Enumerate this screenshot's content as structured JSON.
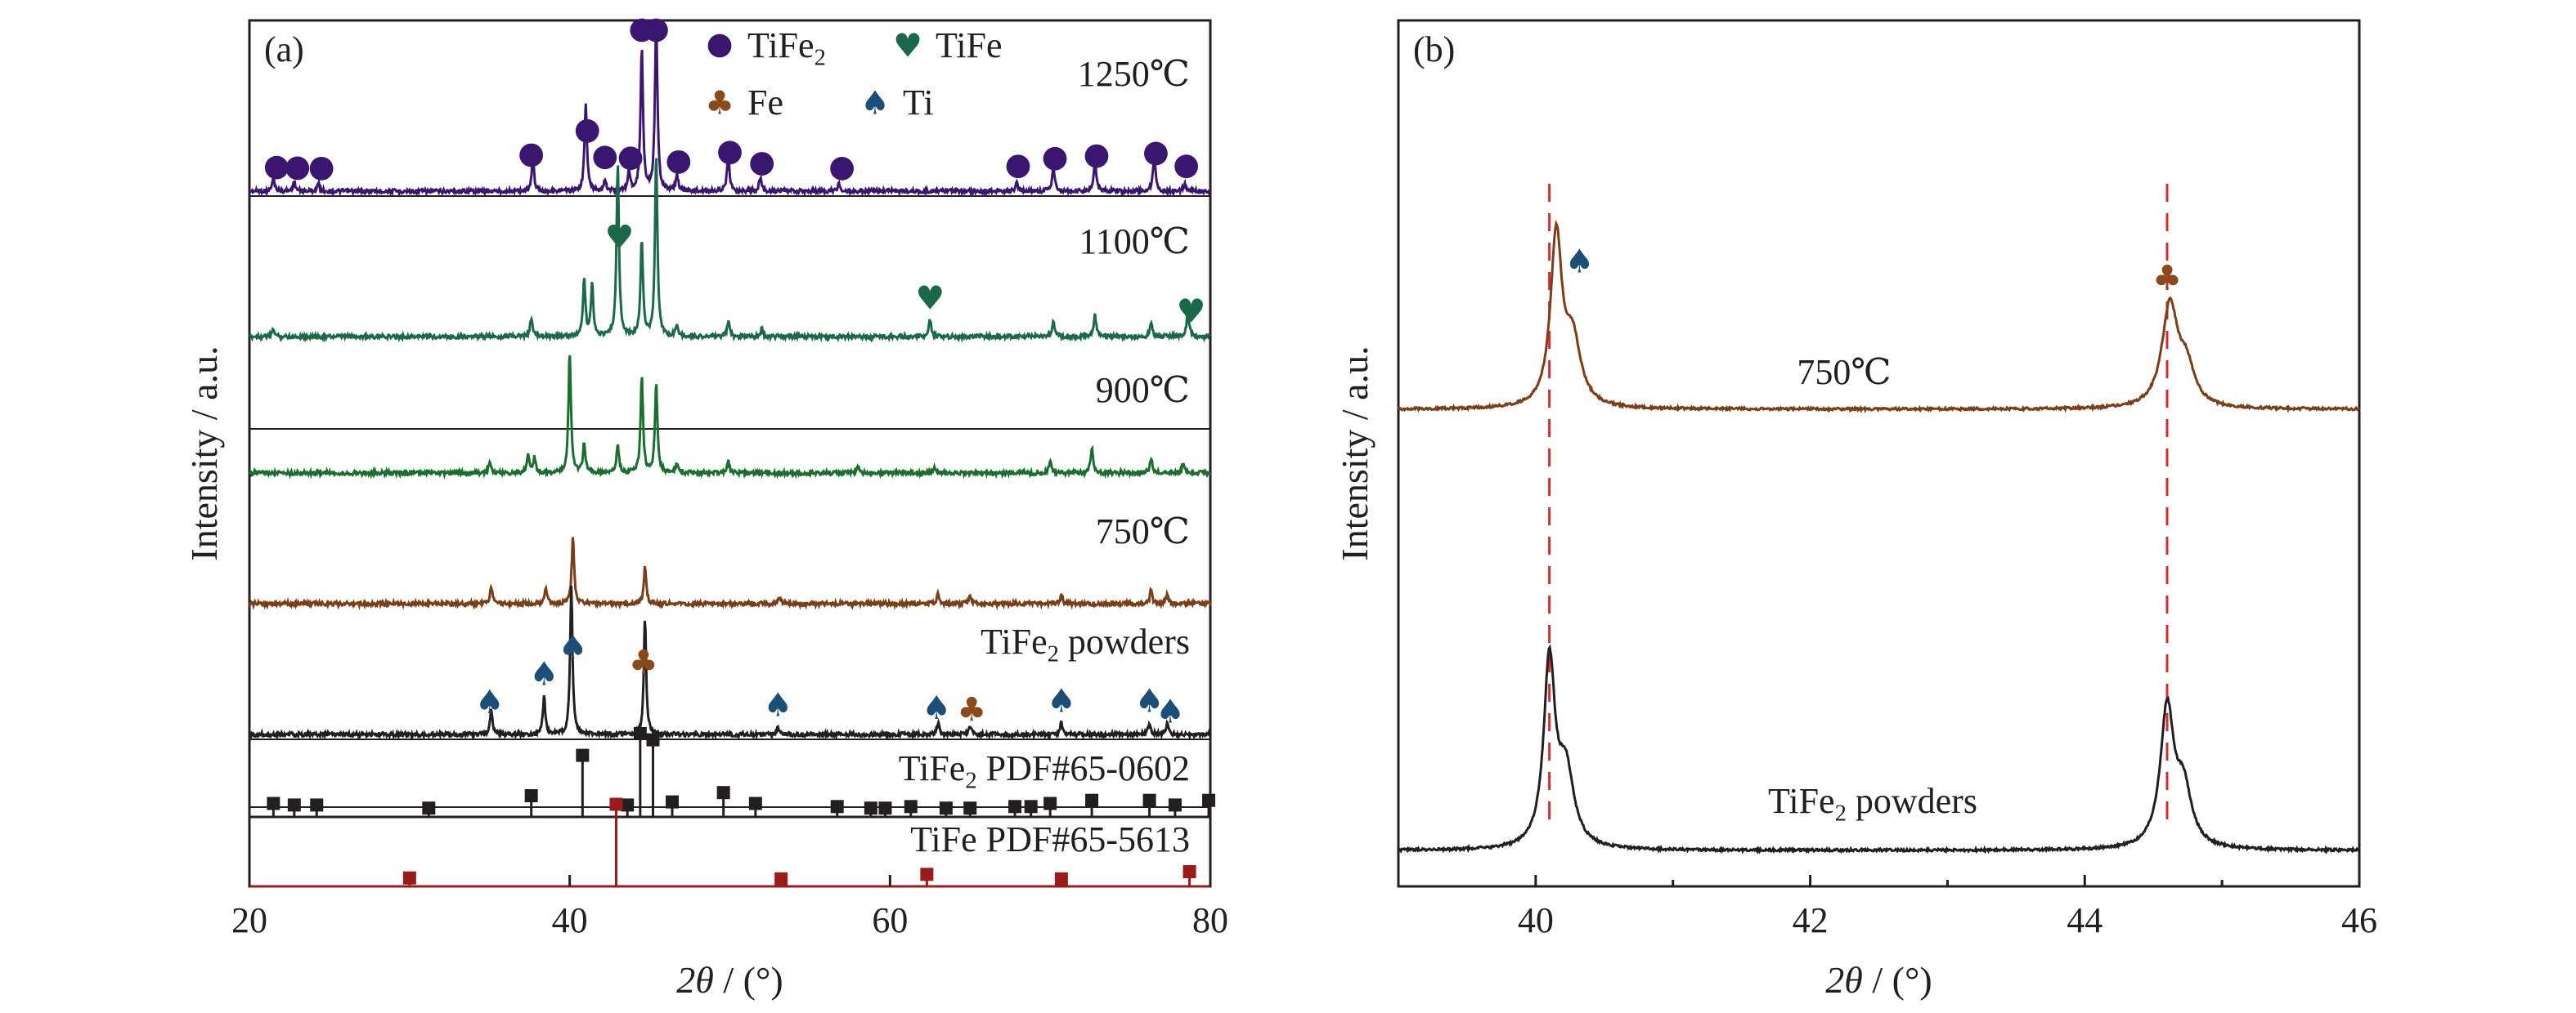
{
  "chart_data": [
    {
      "panel": "a",
      "type": "line",
      "panel_label": "(a)",
      "xlabel_italic": "2θ",
      "xlabel_rest": " / (°)",
      "ylabel": "Intensity / a.u.",
      "xlim": [
        20,
        80
      ],
      "xticks": [
        "20",
        "40",
        "60",
        "80"
      ],
      "xtick_values": [
        20,
        40,
        60,
        80
      ],
      "legend": [
        {
          "marker": "●",
          "label": "TiFe",
          "sub": "2",
          "color": "#3b1670"
        },
        {
          "marker": "♥",
          "label": "TiFe",
          "sub": "",
          "color": "#1a6a4a"
        },
        {
          "marker": "♣",
          "label": "Fe",
          "sub": "",
          "color": "#8a4a1a"
        },
        {
          "marker": "♠",
          "label": "Ti",
          "sub": "",
          "color": "#1c4f78"
        }
      ],
      "series": [
        {
          "name": "1250℃",
          "label": "1250℃",
          "color": "#3b1670",
          "peaks": [
            [
              21.5,
              0.07
            ],
            [
              22.8,
              0.05
            ],
            [
              24.3,
              0.04
            ],
            [
              37.7,
              0.17
            ],
            [
              41.0,
              0.45
            ],
            [
              42.2,
              0.06
            ],
            [
              43.7,
              0.1
            ],
            [
              44.5,
              0.75
            ],
            [
              45.4,
              0.9
            ],
            [
              46.7,
              0.08
            ],
            [
              49.9,
              0.2
            ],
            [
              51.9,
              0.07
            ],
            [
              56.8,
              0.04
            ],
            [
              67.9,
              0.04
            ],
            [
              70.2,
              0.13
            ],
            [
              72.8,
              0.16
            ],
            [
              76.5,
              0.19
            ],
            [
              78.4,
              0.04
            ]
          ],
          "markers": [
            [
              21.7,
              "●"
            ],
            [
              23.0,
              "●"
            ],
            [
              24.5,
              "●"
            ],
            [
              37.6,
              "●"
            ],
            [
              41.1,
              "●"
            ],
            [
              42.2,
              "●"
            ],
            [
              43.8,
              "●"
            ],
            [
              44.5,
              "●"
            ],
            [
              45.4,
              "●"
            ],
            [
              46.8,
              "●"
            ],
            [
              50.0,
              "●"
            ],
            [
              52.0,
              "●"
            ],
            [
              57.0,
              "●"
            ],
            [
              68.0,
              "●"
            ],
            [
              70.3,
              "●"
            ],
            [
              72.9,
              "●"
            ],
            [
              76.6,
              "●"
            ],
            [
              78.5,
              "●"
            ]
          ]
        },
        {
          "name": "1100℃",
          "label": "1100℃",
          "color": "#1a6a4a",
          "peaks": [
            [
              21.5,
              0.04
            ],
            [
              37.6,
              0.1
            ],
            [
              40.9,
              0.3
            ],
            [
              41.4,
              0.27
            ],
            [
              43.0,
              0.9
            ],
            [
              44.5,
              0.5
            ],
            [
              45.4,
              0.95
            ],
            [
              46.7,
              0.06
            ],
            [
              49.9,
              0.08
            ],
            [
              52.0,
              0.04
            ],
            [
              62.5,
              0.09
            ],
            [
              70.2,
              0.08
            ],
            [
              72.8,
              0.11
            ],
            [
              76.3,
              0.07
            ],
            [
              78.6,
              0.13
            ]
          ],
          "markers": [
            [
              43.1,
              "♥"
            ],
            [
              62.5,
              "♥"
            ],
            [
              78.8,
              "♥"
            ]
          ]
        },
        {
          "name": "900℃",
          "label": "900℃",
          "color": "#1a6e2e",
          "peaks": [
            [
              35.0,
              0.06
            ],
            [
              37.4,
              0.1
            ],
            [
              37.8,
              0.08
            ],
            [
              40.0,
              0.63
            ],
            [
              40.9,
              0.15
            ],
            [
              43.0,
              0.15
            ],
            [
              44.5,
              0.5
            ],
            [
              45.4,
              0.47
            ],
            [
              46.7,
              0.05
            ],
            [
              49.9,
              0.06
            ],
            [
              58.0,
              0.03
            ],
            [
              62.8,
              0.03
            ],
            [
              70.0,
              0.06
            ],
            [
              72.6,
              0.13
            ],
            [
              76.3,
              0.08
            ],
            [
              78.3,
              0.05
            ]
          ],
          "markers": []
        },
        {
          "name": "750℃",
          "label": "750℃",
          "color": "#7a3e18",
          "peaks": [
            [
              35.1,
              0.1
            ],
            [
              38.5,
              0.1
            ],
            [
              40.2,
              0.4
            ],
            [
              44.7,
              0.22
            ],
            [
              53.1,
              0.04
            ],
            [
              63.0,
              0.07
            ],
            [
              65.0,
              0.05
            ],
            [
              70.7,
              0.05
            ],
            [
              76.3,
              0.08
            ],
            [
              77.3,
              0.05
            ]
          ],
          "markers": []
        },
        {
          "name": "TiFe2 powders",
          "label_main": "TiFe",
          "label_sub": "2",
          "label_rest": " powders",
          "color": "#231f20",
          "peaks": [
            [
              35.1,
              0.12
            ],
            [
              38.4,
              0.19
            ],
            [
              40.1,
              0.72
            ],
            [
              44.7,
              0.56
            ],
            [
              53.0,
              0.04
            ],
            [
              63.0,
              0.06
            ],
            [
              65.0,
              0.04
            ],
            [
              70.7,
              0.06
            ],
            [
              76.2,
              0.06
            ],
            [
              77.3,
              0.05
            ]
          ],
          "markers": [
            [
              35.0,
              "♠"
            ],
            [
              38.4,
              "♠"
            ],
            [
              40.2,
              "♠"
            ],
            [
              44.6,
              "♣"
            ],
            [
              53.0,
              "♠"
            ],
            [
              62.9,
              "♠"
            ],
            [
              65.1,
              "♣"
            ],
            [
              70.7,
              "♠"
            ],
            [
              76.2,
              "♠"
            ],
            [
              77.5,
              "♠"
            ]
          ]
        }
      ],
      "references": [
        {
          "name": "TiFe2 PDF#65-0602",
          "label_main": "TiFe",
          "label_sub": "2",
          "label_rest": " PDF#65-0602",
          "color": "#231f20",
          "sticks": [
            [
              21.5,
              0.05
            ],
            [
              22.8,
              0.04
            ],
            [
              24.2,
              0.04
            ],
            [
              31.2,
              0.02
            ],
            [
              37.6,
              0.1
            ],
            [
              40.8,
              0.36
            ],
            [
              43.6,
              0.04
            ],
            [
              44.4,
              0.5
            ],
            [
              45.2,
              0.46
            ],
            [
              46.4,
              0.06
            ],
            [
              49.6,
              0.12
            ],
            [
              51.6,
              0.05
            ],
            [
              56.7,
              0.03
            ],
            [
              58.8,
              0.02
            ],
            [
              59.7,
              0.02
            ],
            [
              61.3,
              0.03
            ],
            [
              63.5,
              0.02
            ],
            [
              65.0,
              0.02
            ],
            [
              67.8,
              0.03
            ],
            [
              68.8,
              0.03
            ],
            [
              70.0,
              0.05
            ],
            [
              72.6,
              0.07
            ],
            [
              76.2,
              0.07
            ],
            [
              77.8,
              0.04
            ],
            [
              79.9,
              0.07
            ]
          ]
        },
        {
          "name": "TiFe PDF#65-5613",
          "label_main": "TiFe  PDF#65-5613",
          "label_sub": "",
          "label_rest": "",
          "color": "#9b1b1b",
          "sticks": [
            [
              30.0,
              0.03
            ],
            [
              42.9,
              0.85
            ],
            [
              53.2,
              0.02
            ],
            [
              62.3,
              0.07
            ],
            [
              70.7,
              0.02
            ],
            [
              78.7,
              0.1
            ]
          ]
        }
      ]
    },
    {
      "panel": "b",
      "type": "line",
      "panel_label": "(b)",
      "xlabel_italic": "2θ",
      "xlabel_rest": " / (°)",
      "ylabel": "Intensity / a.u.",
      "xlim": [
        39,
        46
      ],
      "xticks": [
        "40",
        "42",
        "44",
        "46"
      ],
      "xtick_values": [
        40,
        42,
        44,
        46
      ],
      "reference_lines": [
        40.1,
        44.6
      ],
      "series": [
        {
          "name": "750℃",
          "label": "750℃",
          "color": "#7a3e18",
          "peaks": [
            [
              40.15,
              0.92,
              0.05
            ],
            [
              40.27,
              0.35,
              0.07
            ],
            [
              44.62,
              0.55,
              0.07
            ],
            [
              44.74,
              0.2,
              0.07
            ]
          ],
          "markers": [
            [
              40.2,
              "♠",
              "#1c4f78"
            ],
            [
              44.6,
              "♣",
              "#8a4a1a"
            ]
          ]
        },
        {
          "name": "TiFe2 powders",
          "label_main": "TiFe",
          "label_sub": "2",
          "label_rest": " powders",
          "color": "#231f20",
          "peaks": [
            [
              40.1,
              1.0,
              0.05
            ],
            [
              40.22,
              0.4,
              0.07
            ],
            [
              44.6,
              0.75,
              0.06
            ],
            [
              44.72,
              0.3,
              0.07
            ]
          ],
          "markers": []
        }
      ]
    }
  ]
}
